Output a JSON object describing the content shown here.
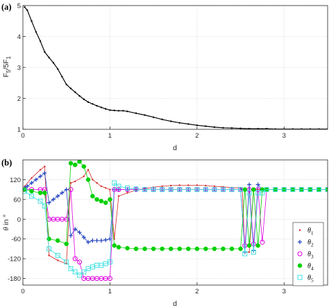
{
  "chart_data": [
    {
      "panel_label": "(a)",
      "type": "line",
      "xlabel": "d",
      "ylabel": "F_5/5F_1",
      "xlim": [
        0,
        3.5
      ],
      "ylim": [
        1,
        5
      ],
      "xticks": [
        0,
        1,
        2,
        3
      ],
      "xtick_labels": [
        "0",
        "1",
        "2",
        "3"
      ],
      "yticks": [
        1,
        2,
        3,
        4,
        5
      ],
      "ytick_labels": [
        "1",
        "2",
        "3",
        "4",
        "5"
      ],
      "grid": true,
      "series": [
        {
          "color": "#000000",
          "marker": "dot",
          "x": [
            0.02,
            0.05,
            0.1,
            0.15,
            0.2,
            0.25,
            0.3,
            0.35,
            0.4,
            0.45,
            0.5,
            0.55,
            0.6,
            0.65,
            0.7,
            0.75,
            0.8,
            0.85,
            0.9,
            0.95,
            1.0,
            1.05,
            1.1,
            1.15,
            1.2,
            1.3,
            1.4,
            1.5,
            1.6,
            1.7,
            1.8,
            1.9,
            2.0,
            2.1,
            2.2,
            2.3,
            2.4,
            2.5,
            2.6,
            2.7,
            2.8,
            2.9,
            3.0,
            3.1,
            3.2,
            3.3,
            3.4,
            3.5
          ],
          "y": [
            4.95,
            4.85,
            4.5,
            4.15,
            3.85,
            3.5,
            3.32,
            3.15,
            2.95,
            2.7,
            2.45,
            2.32,
            2.2,
            2.08,
            1.97,
            1.88,
            1.82,
            1.76,
            1.71,
            1.66,
            1.62,
            1.61,
            1.6,
            1.6,
            1.58,
            1.52,
            1.46,
            1.39,
            1.32,
            1.26,
            1.21,
            1.17,
            1.13,
            1.1,
            1.07,
            1.05,
            1.04,
            1.03,
            1.02,
            1.02,
            1.02,
            1.01,
            1.01,
            1.01,
            1.01,
            1.01,
            1.01,
            1.01
          ]
        }
      ]
    },
    {
      "panel_label": "(b)",
      "type": "scatter",
      "xlabel": "d",
      "ylabel": "θ in °",
      "xlim": [
        0,
        3.5
      ],
      "ylim": [
        -200,
        180
      ],
      "xticks": [
        0,
        1,
        2,
        3
      ],
      "xtick_labels": [
        "0",
        "1",
        "2",
        "3"
      ],
      "yticks": [
        -180,
        -120,
        -60,
        0,
        60,
        120
      ],
      "ytick_labels": [
        "-180",
        "-120",
        "-60",
        "0",
        "60",
        "120"
      ],
      "grid": true,
      "legend_position": "lower-right",
      "series": [
        {
          "name": "θ_1",
          "color": "#d62728",
          "marker": "dot",
          "x": [
            0.02,
            0.1,
            0.2,
            0.25,
            0.3,
            0.4,
            0.5,
            0.55,
            0.6,
            0.7,
            0.75,
            0.8,
            0.85,
            0.9,
            0.95,
            1.0,
            1.05,
            1.1,
            1.2,
            1.3,
            1.4,
            1.5,
            1.6,
            1.7,
            1.8,
            1.9,
            2.0,
            2.1,
            2.2,
            2.3,
            2.4,
            2.5,
            2.52,
            2.55,
            2.6,
            2.65,
            2.7,
            2.75,
            2.8,
            2.9,
            3.0,
            3.1,
            3.2,
            3.3,
            3.4,
            3.5
          ],
          "y": [
            100,
            125,
            150,
            160,
            -110,
            -125,
            -135,
            110,
            115,
            130,
            150,
            120,
            110,
            100,
            95,
            90,
            -60,
            70,
            80,
            88,
            93,
            97,
            100,
            102,
            103,
            103,
            103,
            102,
            100,
            98,
            96,
            95,
            90,
            -100,
            -100,
            90,
            90,
            90,
            90,
            90,
            90,
            90,
            90,
            90,
            90,
            90
          ]
        },
        {
          "name": "θ_2",
          "color": "#1f3fbf",
          "marker": "plus",
          "x": [
            0.02,
            0.05,
            0.1,
            0.15,
            0.2,
            0.25,
            0.3,
            0.35,
            0.4,
            0.45,
            0.5,
            0.55,
            0.6,
            0.65,
            0.7,
            0.75,
            0.8,
            0.85,
            0.9,
            0.95,
            1.0,
            1.05,
            1.1,
            1.2,
            1.3,
            1.4,
            1.5,
            1.6,
            1.7,
            1.8,
            1.9,
            2.0,
            2.1,
            2.2,
            2.3,
            2.4,
            2.5,
            2.55,
            2.6,
            2.65,
            2.7,
            2.75,
            2.8,
            2.9,
            3.0,
            3.1,
            3.2,
            3.3,
            3.4,
            3.5
          ],
          "y": [
            95,
            100,
            110,
            120,
            130,
            140,
            50,
            60,
            70,
            80,
            90,
            -50,
            -30,
            -40,
            -55,
            -70,
            -65,
            -65,
            -65,
            -63,
            -60,
            90,
            90,
            90,
            90,
            90,
            90,
            90,
            90,
            90,
            90,
            90,
            90,
            90,
            90,
            90,
            90,
            -100,
            105,
            -95,
            105,
            90,
            90,
            90,
            90,
            90,
            90,
            90,
            90,
            90
          ]
        },
        {
          "name": "θ_3",
          "color": "#e000e0",
          "marker": "circle",
          "x": [
            0.02,
            0.1,
            0.2,
            0.25,
            0.3,
            0.35,
            0.4,
            0.45,
            0.5,
            0.55,
            0.6,
            0.65,
            0.7,
            0.75,
            0.8,
            0.85,
            0.9,
            0.95,
            1.0,
            1.05,
            1.1,
            1.2,
            1.3,
            1.4,
            1.5,
            1.6,
            1.7,
            1.8,
            1.9,
            2.0,
            2.1,
            2.2,
            2.3,
            2.4,
            2.5,
            2.55,
            2.6,
            2.65,
            2.7,
            2.75,
            2.8,
            2.9,
            3.0,
            3.1,
            3.2,
            3.3,
            3.4,
            3.5
          ],
          "y": [
            90,
            90,
            90,
            90,
            0,
            0,
            0,
            0,
            0,
            90,
            -120,
            -130,
            -180,
            -180,
            -180,
            -180,
            -180,
            -180,
            -180,
            90,
            90,
            90,
            90,
            90,
            90,
            90,
            90,
            90,
            90,
            90,
            90,
            90,
            90,
            90,
            90,
            -80,
            90,
            -75,
            90,
            -70,
            90,
            90,
            90,
            90,
            90,
            90,
            90,
            90
          ]
        },
        {
          "name": "θ_4",
          "color": "#00d000",
          "marker": "star",
          "x": [
            0.02,
            0.1,
            0.2,
            0.25,
            0.3,
            0.4,
            0.5,
            0.55,
            0.6,
            0.65,
            0.7,
            0.75,
            0.8,
            0.85,
            0.9,
            0.95,
            1.0,
            1.05,
            1.1,
            1.2,
            1.3,
            1.4,
            1.5,
            1.6,
            1.7,
            1.8,
            1.9,
            2.0,
            2.1,
            2.2,
            2.3,
            2.4,
            2.5,
            2.55,
            2.6,
            2.65,
            2.7,
            2.75,
            2.8,
            2.9,
            3.0,
            3.1,
            3.2,
            3.3,
            3.4,
            3.5
          ],
          "y": [
            90,
            85,
            80,
            80,
            -60,
            -65,
            -75,
            170,
            165,
            175,
            160,
            120,
            70,
            60,
            55,
            50,
            60,
            -80,
            -85,
            -88,
            -90,
            -90,
            -90,
            -90,
            -90,
            -90,
            -90,
            -90,
            -90,
            -90,
            -90,
            -90,
            -90,
            90,
            -80,
            90,
            -80,
            90,
            90,
            90,
            90,
            90,
            90,
            90,
            90,
            90
          ]
        },
        {
          "name": "θ_5",
          "color": "#40e0e0",
          "marker": "square",
          "x": [
            0.02,
            0.1,
            0.2,
            0.25,
            0.3,
            0.4,
            0.5,
            0.55,
            0.6,
            0.65,
            0.7,
            0.75,
            0.8,
            0.85,
            0.9,
            0.95,
            1.0,
            1.05,
            1.1,
            1.2,
            1.3,
            1.4,
            1.5,
            1.6,
            1.7,
            1.8,
            1.9,
            2.0,
            2.1,
            2.2,
            2.3,
            2.4,
            2.5,
            2.55,
            2.6,
            2.65,
            2.7,
            2.75,
            2.8,
            2.9,
            3.0,
            3.1,
            3.2,
            3.3,
            3.4,
            3.5
          ],
          "y": [
            85,
            70,
            55,
            40,
            -90,
            -110,
            -130,
            -150,
            -160,
            -170,
            -160,
            -150,
            -145,
            -140,
            -140,
            -135,
            -130,
            110,
            100,
            95,
            92,
            90,
            90,
            90,
            90,
            90,
            90,
            90,
            90,
            90,
            90,
            90,
            90,
            -105,
            80,
            -100,
            80,
            80,
            90,
            90,
            90,
            90,
            90,
            90,
            90,
            90
          ]
        }
      ]
    }
  ]
}
